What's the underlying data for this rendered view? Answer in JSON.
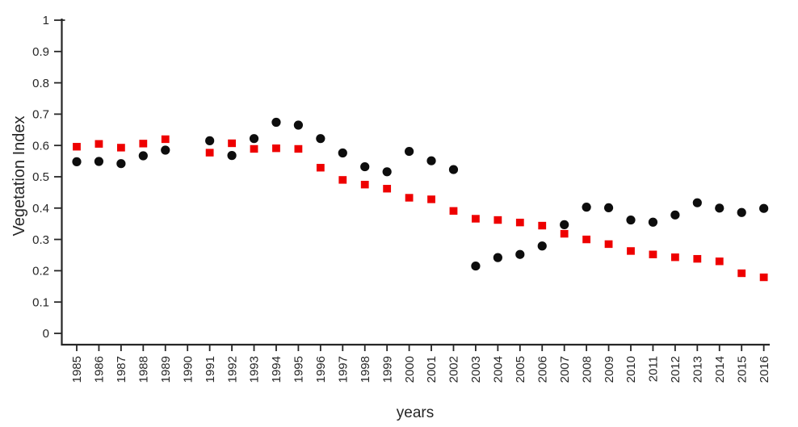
{
  "chart_data": {
    "type": "scatter",
    "title": "",
    "xlabel": "years",
    "ylabel": "Vegetation Index",
    "ylim": [
      0,
      1
    ],
    "grid": false,
    "legend_position": "none",
    "yticks": [
      0,
      0.1,
      0.2,
      0.3,
      0.4,
      0.5,
      0.6,
      0.7,
      0.8,
      0.9,
      1
    ],
    "ytick_labels": [
      "0",
      "0.1",
      "0.2",
      "0.3",
      "0.4",
      "0.5",
      "0.6",
      "0.7",
      "0.8",
      "0.9",
      "1"
    ],
    "x": [
      1985,
      1986,
      1987,
      1988,
      1989,
      1990,
      1991,
      1992,
      1993,
      1994,
      1995,
      1996,
      1997,
      1998,
      1999,
      2000,
      2001,
      2002,
      2003,
      2004,
      2005,
      2006,
      2007,
      2008,
      2009,
      2010,
      2011,
      2012,
      2013,
      2014,
      2015,
      2016
    ],
    "series": [
      {
        "name": "black-circles",
        "marker": "circle",
        "color": "#0d0d0d",
        "values": [
          0.548,
          0.549,
          0.542,
          0.567,
          0.585,
          null,
          0.615,
          0.568,
          0.622,
          0.674,
          0.665,
          0.622,
          0.576,
          0.532,
          0.516,
          0.581,
          0.551,
          0.523,
          0.215,
          0.242,
          0.252,
          0.279,
          0.347,
          0.403,
          0.401,
          0.362,
          0.355,
          0.378,
          0.417,
          0.4,
          0.386,
          0.399
        ]
      },
      {
        "name": "red-squares",
        "marker": "square",
        "color": "#ee0000",
        "values": [
          0.596,
          0.605,
          0.593,
          0.606,
          0.62,
          null,
          0.577,
          0.607,
          0.589,
          0.591,
          0.589,
          0.529,
          0.49,
          0.475,
          0.462,
          0.433,
          0.428,
          0.391,
          0.366,
          0.362,
          0.354,
          0.344,
          0.318,
          0.3,
          0.285,
          0.263,
          0.252,
          0.243,
          0.238,
          0.23,
          0.192,
          0.179
        ]
      }
    ],
    "colors": {
      "axis": "#262626",
      "tick_text": "#262626"
    }
  }
}
